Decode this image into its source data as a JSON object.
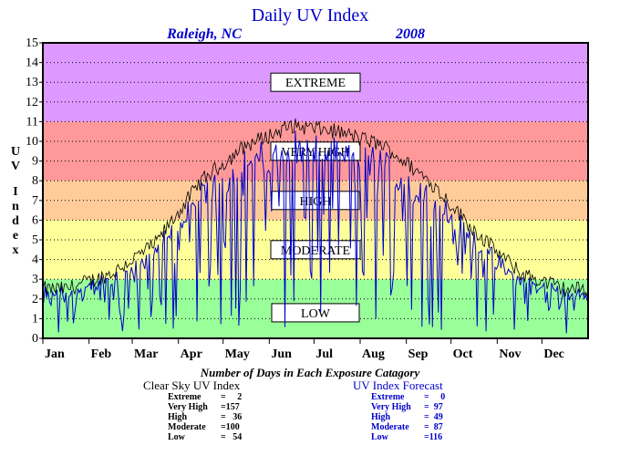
{
  "chart_data": {
    "type": "line",
    "title": "Daily UV Index",
    "subtitle_location": "Raleigh, NC",
    "subtitle_year": "2008",
    "ylabel": "UV Index",
    "ylim": [
      0,
      15
    ],
    "yticks": [
      "0",
      "1",
      "2",
      "3",
      "4",
      "5",
      "6",
      "7",
      "8",
      "9",
      "10",
      "11",
      "12",
      "13",
      "14",
      "15"
    ],
    "months": [
      "Jan",
      "Feb",
      "Mar",
      "Apr",
      "May",
      "Jun",
      "Jul",
      "Aug",
      "Sep",
      "Oct",
      "Nov",
      "Dec"
    ],
    "grid": true,
    "bands": [
      {
        "label": "LOW",
        "from": 0,
        "to": 3,
        "color": "#99ff99"
      },
      {
        "label": "MODERATE",
        "from": 3,
        "to": 6,
        "color": "#ffff99"
      },
      {
        "label": "HIGH",
        "from": 6,
        "to": 8,
        "color": "#ffcc99"
      },
      {
        "label": "VERY HIGH",
        "from": 8,
        "to": 11,
        "color": "#ff9999"
      },
      {
        "label": "EXTREME",
        "from": 11,
        "to": 15,
        "color": "#dd99ff"
      }
    ],
    "series": [
      {
        "name": "Clear Sky UV Index",
        "color": "#000000",
        "monthly_values": [
          2.5,
          3.3,
          4.8,
          8.0,
          9.8,
          10.8,
          10.5,
          9.8,
          8.0,
          5.5,
          3.3,
          2.5
        ]
      },
      {
        "name": "UV Index Forecast",
        "color": "#0000cc",
        "monthly_values": [
          2.0,
          2.8,
          4.0,
          6.5,
          8.3,
          9.3,
          9.0,
          8.5,
          6.8,
          4.5,
          2.5,
          1.9
        ]
      }
    ],
    "footer_title": "Number of Days in Each Exposure Catagory",
    "clear_sky": {
      "heading": "Clear Sky UV Index",
      "rows": [
        {
          "label": "Extreme",
          "value": "=     2"
        },
        {
          "label": "Very High",
          "value": "=157"
        },
        {
          "label": "High",
          "value": "=   36"
        },
        {
          "label": "Moderate",
          "value": "=100"
        },
        {
          "label": "Low",
          "value": "=   54"
        }
      ]
    },
    "forecast": {
      "heading": "UV Index Forecast",
      "rows": [
        {
          "label": "Extreme",
          "value": "=     0"
        },
        {
          "label": "Very High",
          "value": "=  97"
        },
        {
          "label": "High",
          "value": "=  49"
        },
        {
          "label": "Moderate",
          "value": "=  87"
        },
        {
          "label": "Low",
          "value": "=116"
        }
      ]
    },
    "colors": {
      "title": "#0000cc",
      "forecast_text": "#0000cc",
      "clear_text": "#000000"
    }
  }
}
